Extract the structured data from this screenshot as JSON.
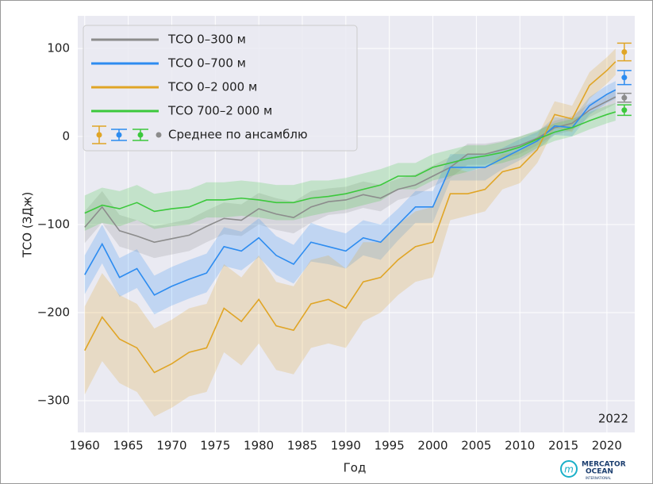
{
  "chart_data": {
    "type": "line",
    "xlabel": "Год",
    "ylabel": "ТСО (ЗДж)",
    "x": [
      1960,
      1962,
      1964,
      1966,
      1968,
      1970,
      1972,
      1974,
      1976,
      1978,
      1980,
      1982,
      1984,
      1986,
      1988,
      1990,
      1992,
      1994,
      1996,
      1998,
      2000,
      2002,
      2004,
      2006,
      2008,
      2010,
      2012,
      2014,
      2016,
      2018,
      2020,
      2021
    ],
    "series": [
      {
        "name": "ТСО 0–300 м",
        "color": "#8c8c8c",
        "values": [
          -103,
          -80,
          -107,
          -113,
          -120,
          -116,
          -112,
          -102,
          -93,
          -95,
          -82,
          -88,
          -92,
          -80,
          -74,
          -72,
          -66,
          -70,
          -60,
          -55,
          -45,
          -35,
          -20,
          -20,
          -15,
          -10,
          -2,
          10,
          15,
          30,
          40,
          45
        ],
        "errors": [
          18,
          18,
          18,
          18,
          18,
          18,
          18,
          18,
          18,
          18,
          18,
          18,
          18,
          18,
          15,
          15,
          15,
          15,
          12,
          12,
          12,
          12,
          12,
          12,
          10,
          10,
          8,
          8,
          8,
          8,
          8,
          8
        ]
      },
      {
        "name": "ТСО 0–700 м",
        "color": "#2d8cf0",
        "values": [
          -157,
          -122,
          -160,
          -150,
          -180,
          -170,
          -162,
          -155,
          -125,
          -130,
          -115,
          -135,
          -145,
          -120,
          -125,
          -130,
          -115,
          -120,
          -100,
          -80,
          -80,
          -35,
          -35,
          -35,
          -25,
          -15,
          -5,
          12,
          10,
          35,
          48,
          53
        ],
        "errors": [
          22,
          22,
          22,
          22,
          22,
          22,
          22,
          22,
          22,
          22,
          22,
          22,
          22,
          22,
          20,
          20,
          20,
          20,
          18,
          18,
          18,
          15,
          15,
          15,
          12,
          12,
          10,
          10,
          10,
          10,
          10,
          10
        ]
      },
      {
        "name": "ТСО 0–2 000 м",
        "color": "#e0a526",
        "values": [
          -243,
          -205,
          -230,
          -240,
          -268,
          -258,
          -245,
          -240,
          -195,
          -210,
          -185,
          -215,
          -220,
          -190,
          -185,
          -195,
          -165,
          -160,
          -140,
          -125,
          -120,
          -65,
          -65,
          -60,
          -40,
          -35,
          -15,
          25,
          20,
          58,
          75,
          85
        ],
        "errors": [
          50,
          50,
          50,
          50,
          50,
          50,
          50,
          50,
          50,
          50,
          50,
          50,
          50,
          50,
          50,
          45,
          45,
          40,
          40,
          40,
          40,
          30,
          25,
          25,
          20,
          18,
          15,
          15,
          15,
          15,
          15,
          15
        ]
      },
      {
        "name": "ТСО 700–2 000 м",
        "color": "#3cc83c",
        "values": [
          -87,
          -78,
          -82,
          -75,
          -85,
          -82,
          -80,
          -72,
          -72,
          -70,
          -72,
          -75,
          -75,
          -70,
          -68,
          -65,
          -60,
          -55,
          -45,
          -45,
          -35,
          -30,
          -25,
          -22,
          -18,
          -12,
          -3,
          5,
          10,
          18,
          25,
          28
        ],
        "errors": [
          20,
          20,
          20,
          20,
          20,
          20,
          20,
          20,
          20,
          20,
          20,
          20,
          20,
          20,
          18,
          18,
          18,
          18,
          15,
          15,
          15,
          15,
          15,
          12,
          12,
          12,
          10,
          10,
          10,
          10,
          10,
          10
        ]
      }
    ],
    "ensemble": {
      "name": "Среднее по ансамблю",
      "x": 2022,
      "values": [
        44,
        67,
        96,
        30
      ],
      "errors": [
        5,
        8,
        10,
        6
      ]
    },
    "annotation": "2022",
    "logo": [
      "MERCATOR",
      "OCEAN",
      "INTERNATIONAL"
    ],
    "xlim": [
      1959.2,
      2023.2
    ],
    "xticks": [
      1960,
      1965,
      1970,
      1975,
      1980,
      1985,
      1990,
      1995,
      2000,
      2005,
      2010,
      2015,
      2020
    ],
    "ylim": [
      -336,
      137
    ],
    "yticks": [
      {
        "value": -300,
        "label": "−300"
      },
      {
        "value": -200,
        "label": "−200"
      },
      {
        "value": -100,
        "label": "−100"
      },
      0,
      100
    ],
    "grid": true,
    "legend": "upper left"
  }
}
